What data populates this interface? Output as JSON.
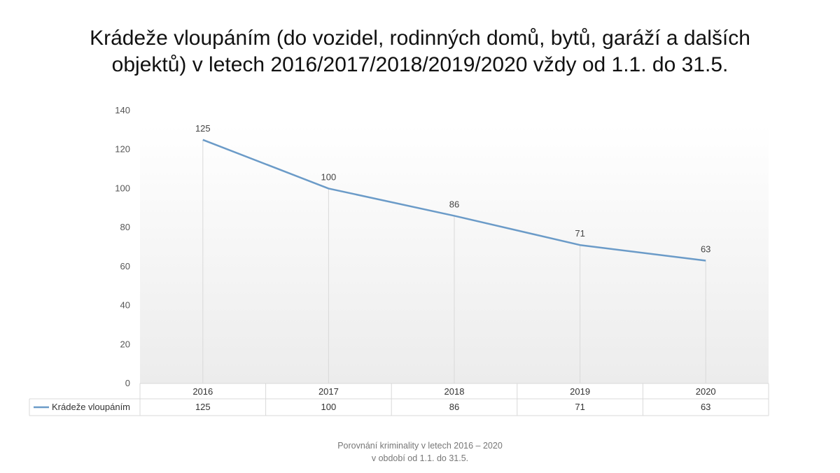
{
  "title_lines": [
    "Krádeže vloupáním (do vozidel, rodinných domů, bytů, garáží a dalších",
    "objektů) v letech 2016/2017/2018/2019/2020 vždy od 1.1. do 31.5."
  ],
  "footer_lines": [
    "Porovnání kriminality v letech 2016 – 2020",
    "v období od 1.1. do 31.5."
  ],
  "colors": {
    "series": "#6b9bc8",
    "grid": "#d9d9d9",
    "table_border": "#d9d9d9"
  },
  "chart_data": {
    "type": "line",
    "title": "Krádeže vloupáním (do vozidel, rodinných domů, bytů, garáží a dalších objektů) v letech 2016/2017/2018/2019/2020 vždy od 1.1. do 31.5.",
    "categories": [
      "2016",
      "2017",
      "2018",
      "2019",
      "2020"
    ],
    "series": [
      {
        "name": "Krádeže vloupáním",
        "values": [
          125,
          100,
          86,
          71,
          63
        ]
      }
    ],
    "ylim": [
      0,
      140
    ],
    "yticks": [
      0,
      20,
      40,
      60,
      80,
      100,
      120,
      140
    ],
    "xlabel": "",
    "ylabel": "",
    "grid": "vertical",
    "data_labels": true,
    "data_table": true,
    "legend": "data-table"
  }
}
